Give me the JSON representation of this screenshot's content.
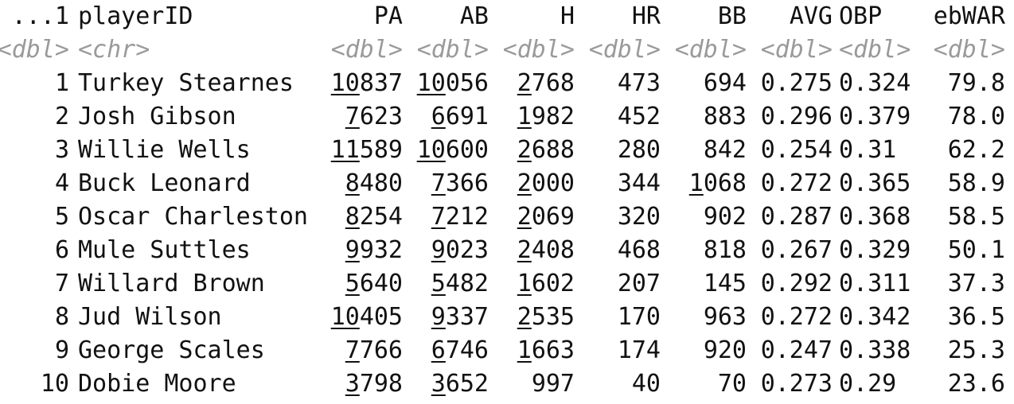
{
  "columns": [
    {
      "name": "...1",
      "type": "<dbl>"
    },
    {
      "name": "playerID",
      "type": "<chr>"
    },
    {
      "name": "PA",
      "type": "<dbl>"
    },
    {
      "name": "AB",
      "type": "<dbl>"
    },
    {
      "name": "H",
      "type": "<dbl>"
    },
    {
      "name": "HR",
      "type": "<dbl>"
    },
    {
      "name": "BB",
      "type": "<dbl>"
    },
    {
      "name": "AVG",
      "type": "<dbl>"
    },
    {
      "name": "OBP",
      "type": "<dbl>"
    },
    {
      "name": "ebWAR",
      "type": "<dbl>"
    }
  ],
  "rows": [
    {
      "idx": "1",
      "player": "Turkey Stearnes",
      "pa": "10837",
      "ab": "10056",
      "h": "2768",
      "hr": "473",
      "bb": "694",
      "avg": "0.275",
      "obp": "0.324",
      "war": "79.8"
    },
    {
      "idx": "2",
      "player": "Josh Gibson",
      "pa": "7623",
      "ab": "6691",
      "h": "1982",
      "hr": "452",
      "bb": "883",
      "avg": "0.296",
      "obp": "0.379",
      "war": "78.0"
    },
    {
      "idx": "3",
      "player": "Willie Wells",
      "pa": "11589",
      "ab": "10600",
      "h": "2688",
      "hr": "280",
      "bb": "842",
      "avg": "0.254",
      "obp": "0.31",
      "war": "62.2"
    },
    {
      "idx": "4",
      "player": "Buck Leonard",
      "pa": "8480",
      "ab": "7366",
      "h": "2000",
      "hr": "344",
      "bb": "1068",
      "avg": "0.272",
      "obp": "0.365",
      "war": "58.9"
    },
    {
      "idx": "5",
      "player": "Oscar Charleston",
      "pa": "8254",
      "ab": "7212",
      "h": "2069",
      "hr": "320",
      "bb": "902",
      "avg": "0.287",
      "obp": "0.368",
      "war": "58.5"
    },
    {
      "idx": "6",
      "player": "Mule Suttles",
      "pa": "9932",
      "ab": "9023",
      "h": "2408",
      "hr": "468",
      "bb": "818",
      "avg": "0.267",
      "obp": "0.329",
      "war": "50.1"
    },
    {
      "idx": "7",
      "player": "Willard Brown",
      "pa": "5640",
      "ab": "5482",
      "h": "1602",
      "hr": "207",
      "bb": "145",
      "avg": "0.292",
      "obp": "0.311",
      "war": "37.3"
    },
    {
      "idx": "8",
      "player": "Jud Wilson",
      "pa": "10405",
      "ab": "9337",
      "h": "2535",
      "hr": "170",
      "bb": "963",
      "avg": "0.272",
      "obp": "0.342",
      "war": "36.5"
    },
    {
      "idx": "9",
      "player": "George Scales",
      "pa": "7766",
      "ab": "6746",
      "h": "1663",
      "hr": "174",
      "bb": "920",
      "avg": "0.247",
      "obp": "0.338",
      "war": "25.3"
    },
    {
      "idx": "10",
      "player": "Dobie Moore",
      "pa": "3798",
      "ab": "3652",
      "h": "997",
      "hr": "40",
      "bb": "70",
      "avg": "0.273",
      "obp": "0.29",
      "war": "23.6"
    }
  ]
}
